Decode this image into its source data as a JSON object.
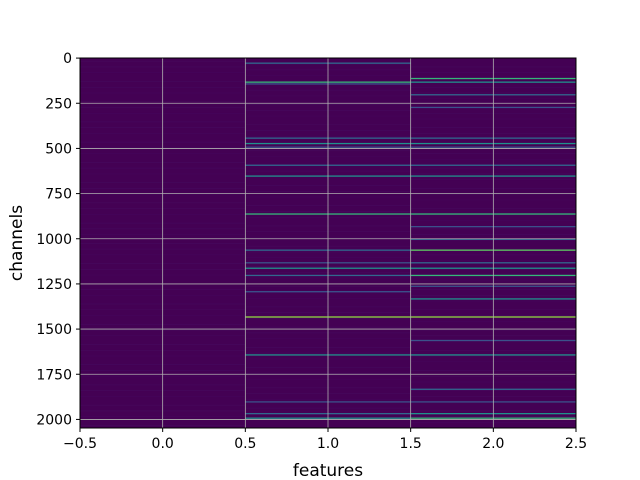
{
  "chart_data": {
    "type": "heatmap",
    "title": "",
    "xlabel": "features",
    "ylabel": "channels",
    "xlim": [
      -0.5,
      2.5
    ],
    "ylim": [
      2047.5,
      -0.5
    ],
    "xticks": [
      -0.5,
      0.0,
      0.5,
      1.0,
      1.5,
      2.0,
      2.5
    ],
    "xtick_labels": [
      "−0.5",
      "0.0",
      "0.5",
      "1.0",
      "1.5",
      "2.0",
      "2.5"
    ],
    "yticks": [
      0,
      250,
      500,
      750,
      1000,
      1250,
      1500,
      1750,
      2000
    ],
    "ytick_labels": [
      "0",
      "250",
      "500",
      "750",
      "1000",
      "1250",
      "1500",
      "1750",
      "2000"
    ],
    "grid": true,
    "colormap": "viridis",
    "rows": 2048,
    "columns": [
      0,
      1,
      2
    ],
    "background_color": "#440154",
    "highlights": [
      {
        "column": 1,
        "row": 25,
        "color": "#31688e"
      },
      {
        "column": 1,
        "row": 130,
        "color": "#35b779"
      },
      {
        "column": 1,
        "row": 140,
        "color": "#3b528b"
      },
      {
        "column": 1,
        "row": 440,
        "color": "#31688e"
      },
      {
        "column": 1,
        "row": 470,
        "color": "#21918c"
      },
      {
        "column": 1,
        "row": 490,
        "color": "#3b528b"
      },
      {
        "column": 1,
        "row": 590,
        "color": "#31688e"
      },
      {
        "column": 1,
        "row": 650,
        "color": "#21918c"
      },
      {
        "column": 1,
        "row": 860,
        "color": "#35b779"
      },
      {
        "column": 1,
        "row": 1060,
        "color": "#31688e"
      },
      {
        "column": 1,
        "row": 1130,
        "color": "#3b528b"
      },
      {
        "column": 1,
        "row": 1160,
        "color": "#21918c"
      },
      {
        "column": 1,
        "row": 1200,
        "color": "#31688e"
      },
      {
        "column": 1,
        "row": 1290,
        "color": "#3b528b"
      },
      {
        "column": 1,
        "row": 1430,
        "color": "#90d743"
      },
      {
        "column": 1,
        "row": 1640,
        "color": "#21918c"
      },
      {
        "column": 1,
        "row": 1900,
        "color": "#3b528b"
      },
      {
        "column": 1,
        "row": 1965,
        "color": "#31688e"
      },
      {
        "column": 1,
        "row": 1990,
        "color": "#21918c"
      },
      {
        "column": 2,
        "row": 110,
        "color": "#35b779"
      },
      {
        "column": 2,
        "row": 130,
        "color": "#21918c"
      },
      {
        "column": 2,
        "row": 200,
        "color": "#31688e"
      },
      {
        "column": 2,
        "row": 270,
        "color": "#3b528b"
      },
      {
        "column": 2,
        "row": 440,
        "color": "#31688e"
      },
      {
        "column": 2,
        "row": 470,
        "color": "#21918c"
      },
      {
        "column": 2,
        "row": 490,
        "color": "#3b528b"
      },
      {
        "column": 2,
        "row": 590,
        "color": "#31688e"
      },
      {
        "column": 2,
        "row": 650,
        "color": "#21918c"
      },
      {
        "column": 2,
        "row": 860,
        "color": "#35b779"
      },
      {
        "column": 2,
        "row": 930,
        "color": "#3b528b"
      },
      {
        "column": 2,
        "row": 1000,
        "color": "#31688e"
      },
      {
        "column": 2,
        "row": 1060,
        "color": "#5ec962"
      },
      {
        "column": 2,
        "row": 1130,
        "color": "#31688e"
      },
      {
        "column": 2,
        "row": 1160,
        "color": "#21918c"
      },
      {
        "column": 2,
        "row": 1200,
        "color": "#35b779"
      },
      {
        "column": 2,
        "row": 1260,
        "color": "#3b528b"
      },
      {
        "column": 2,
        "row": 1330,
        "color": "#21918c"
      },
      {
        "column": 2,
        "row": 1430,
        "color": "#90d743"
      },
      {
        "column": 2,
        "row": 1560,
        "color": "#3b528b"
      },
      {
        "column": 2,
        "row": 1640,
        "color": "#21918c"
      },
      {
        "column": 2,
        "row": 1830,
        "color": "#31688e"
      },
      {
        "column": 2,
        "row": 1900,
        "color": "#3b528b"
      },
      {
        "column": 2,
        "row": 1965,
        "color": "#21918c"
      },
      {
        "column": 2,
        "row": 1990,
        "color": "#35b779"
      }
    ],
    "grid_color": "#b0b0b0"
  }
}
